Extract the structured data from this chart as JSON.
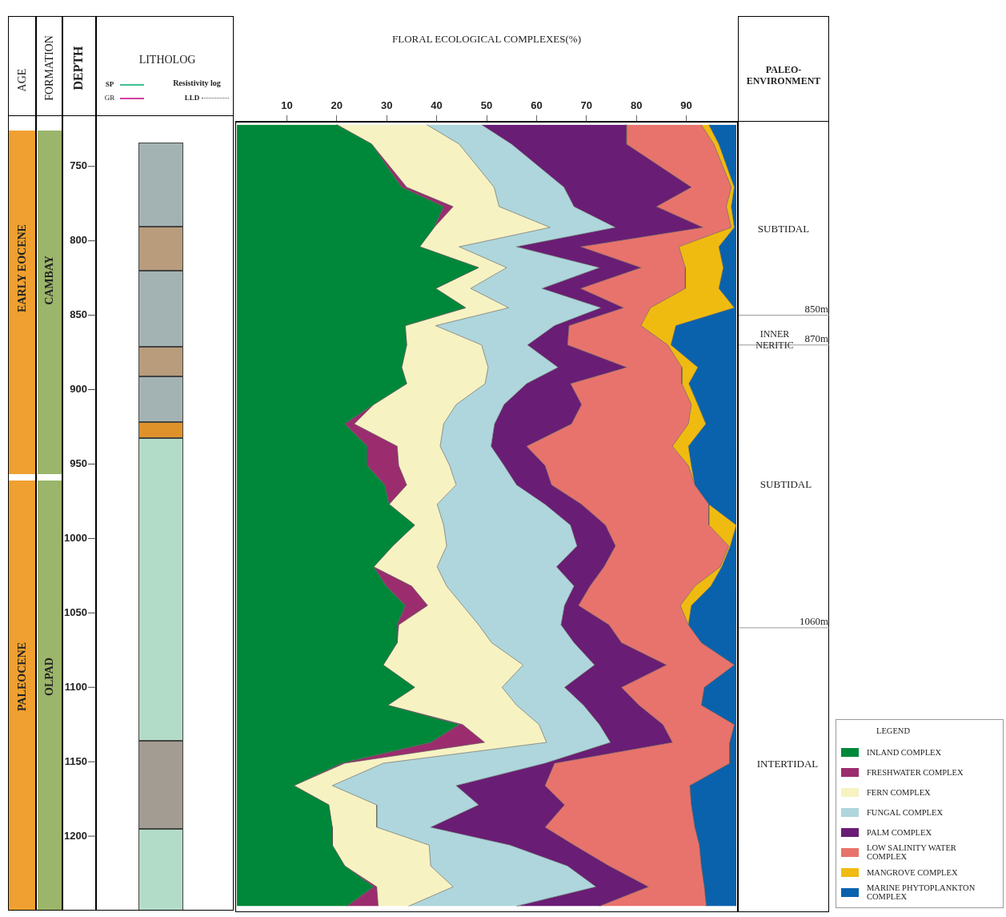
{
  "chart_data": {
    "type": "area",
    "stacked": true,
    "orientation": "horizontal",
    "x2label": "FLORAL ECOLOGICAL COMPLEXES(%)",
    "ylabel": "DEPTH",
    "legend": "bottom right",
    "legend_title": "LEGEND",
    "x": [
      722,
      735,
      764,
      777,
      791,
      804,
      818,
      832,
      845,
      857,
      870,
      885,
      896,
      910,
      923,
      938,
      951,
      964,
      977,
      991,
      1005,
      1019,
      1032,
      1045,
      1058,
      1070,
      1085,
      1100,
      1112,
      1125,
      1137,
      1151,
      1166,
      1179,
      1194,
      1206,
      1220,
      1234,
      1247
    ],
    "x2lim": [
      0,
      100
    ],
    "x2ticks": [
      10,
      20,
      30,
      40,
      50,
      60,
      70,
      80,
      90
    ],
    "ylim": [
      1250,
      720
    ],
    "yticks": [
      750,
      800,
      850,
      900,
      950,
      1000,
      1050,
      1100,
      1150,
      1200
    ],
    "series": [
      {
        "name": "INLAND COMPLEX",
        "color": "#00883a",
        "axis": "x2",
        "values": [
          20,
          27,
          33,
          41.4,
          39.5,
          36.6,
          48.4,
          39.8,
          45.8,
          33.7,
          34,
          33,
          34,
          27.4,
          21.6,
          26.1,
          26.1,
          29.6,
          30.5,
          35.6,
          31.2,
          27.4,
          29.9,
          33.7,
          32.1,
          32.1,
          29.3,
          35.6,
          30.2,
          44.5,
          38.8,
          21,
          11.4,
          18.4,
          19.1,
          19.1,
          21.6,
          27.4,
          22
        ]
      },
      {
        "name": "FRESHWATER COMPLEX",
        "color": "#9b2d6e",
        "axis": "x2",
        "values": [
          0,
          0,
          1,
          1.9,
          0,
          0,
          0,
          0,
          0,
          0,
          0,
          0,
          0,
          0,
          1.9,
          6,
          6.3,
          4.4,
          0,
          0,
          0,
          0,
          5.1,
          4.5,
          0.3,
          0,
          0,
          0,
          0,
          0.7,
          10.8,
          0.6,
          0,
          0,
          0,
          0,
          0,
          0.6,
          6.3
        ]
      },
      {
        "name": "FERN COMPLEX",
        "color": "#f7f2c2",
        "axis": "x2",
        "values": [
          18,
          17.5,
          17.5,
          9.2,
          23.2,
          7.9,
          5.6,
          7,
          8.6,
          6.1,
          15,
          17.3,
          15.7,
          16.5,
          17.9,
          8.6,
          10.2,
          9.9,
          9.6,
          5.8,
          10.8,
          12.7,
          7,
          7,
          16,
          18.9,
          28,
          17.5,
          25.8,
          15.3,
          12.4,
          7.7,
          7.7,
          9.6,
          8.9,
          19.4,
          17.2,
          15.3,
          6.1
        ]
      },
      {
        "name": "FUNGAL COMPLEX",
        "color": "#aed6dc",
        "axis": "x2",
        "values": [
          11,
          10.5,
          14,
          15,
          13.1,
          11.5,
          18.6,
          14.3,
          18.5,
          23.8,
          9.2,
          14,
          8.3,
          9.6,
          10.2,
          10.2,
          10.9,
          12.1,
          21.6,
          25.4,
          26.1,
          23.9,
          25.5,
          20.4,
          16.5,
          16.5,
          14.3,
          12.5,
          13.4,
          12.1,
          12.8,
          32.4,
          24.8,
          20.4,
          10.8,
          16.2,
          27.4,
          28.6,
          21.6
        ]
      },
      {
        "name": "PALM COMPLEX",
        "color": "#6a1d74",
        "axis": "x2",
        "values": [
          29,
          23,
          25.5,
          16.5,
          17.5,
          12.8,
          8.3,
          7.7,
          4.5,
          2.9,
          8,
          13.7,
          8.8,
          15.5,
          15.4,
          7.1,
          8.2,
          7,
          7.3,
          7,
          7.7,
          9.5,
          3.2,
          2.8,
          9.6,
          9.5,
          14.4,
          11.4,
          11.1,
          12.7,
          12.4,
          1.9,
          17.8,
          17.2,
          22.9,
          12.8,
          8.3,
          10.5,
          16.6
        ]
      },
      {
        "name": "LOW SALINITY WATER COMPLEX",
        "color": "#e8736c",
        "axis": "x2",
        "values": [
          15,
          17.5,
          8,
          14,
          5.7,
          19.7,
          8.9,
          21,
          5.4,
          14.4,
          20.1,
          11.1,
          22.3,
          22,
          23.4,
          29.2,
          28.7,
          28.7,
          25.5,
          20.7,
          22.7,
          23.3,
          21,
          20.4,
          15.9,
          16,
          13.6,
          16.6,
          12.5,
          14.3,
          11.5,
          35.1,
          29,
          25.4,
          30,
          25.1,
          18.5,
          11.2,
          21.4
        ]
      },
      {
        "name": "MANGROVE COMPLEX",
        "color": "#f0bb10",
        "axis": "x2",
        "values": [
          1.5,
          1,
          0.6,
          1,
          0.6,
          8,
          7.6,
          6.7,
          16.8,
          7,
          0.6,
          3.2,
          1.4,
          1.3,
          3.5,
          3.2,
          0.6,
          0,
          0,
          5.5,
          0.3,
          0.3,
          3.2,
          2.2,
          0,
          0,
          0,
          0,
          0,
          0,
          0,
          0,
          0,
          0,
          0,
          0,
          0,
          0,
          0
        ]
      },
      {
        "name": "MARINE PHYTOPLANKTON COMPLEX",
        "color": "#0a62ad",
        "axis": "x2",
        "values": [
          5.5,
          3.5,
          0.4,
          1,
          0.4,
          3.5,
          2.6,
          3.5,
          0.4,
          12.1,
          13.1,
          7.7,
          9.5,
          7.7,
          6.1,
          9.6,
          9,
          8.3,
          5.5,
          0,
          1.2,
          2.9,
          5.1,
          9,
          9.6,
          7,
          0.4,
          6.4,
          7,
          0.4,
          1.3,
          1.3,
          9.3,
          9,
          8.3,
          7.4,
          7,
          6.4,
          6
        ]
      }
    ],
    "ref_lines": [
      {
        "axis": "y",
        "value": 850,
        "label": "850m"
      },
      {
        "axis": "y",
        "value": 870,
        "label": "870m"
      },
      {
        "axis": "y",
        "value": 1060,
        "label": "1060m"
      }
    ],
    "annotations": [
      "AGE",
      "FORMATION",
      "EARLY EOCENE",
      "PALEOCENE",
      "CAMBAY",
      "OLPAD",
      "LITHOLOG",
      "SP",
      "GR",
      "Resistivity log",
      "LLD",
      "PALEO-ENVIRONMENT",
      "SUBTIDAL",
      "INNER NERITIC",
      "SUBTIDAL",
      "INTERTIDAL"
    ]
  }
}
